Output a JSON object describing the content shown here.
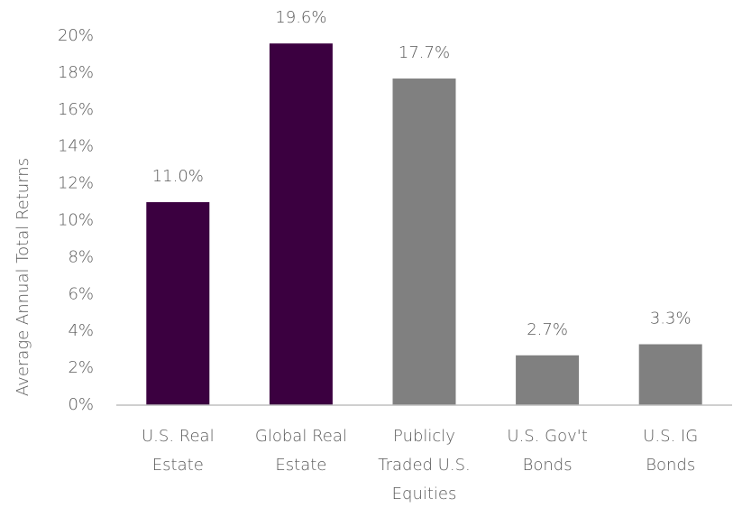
{
  "chart_data": {
    "type": "bar",
    "ylabel": "Average Annual Total Returns",
    "categories": [
      [
        "U.S. Real",
        "Estate"
      ],
      [
        "Global Real",
        "Estate"
      ],
      [
        "Publicly",
        "Traded U.S.",
        "Equities"
      ],
      [
        "U.S. Gov't",
        "Bonds"
      ],
      [
        "U.S. IG",
        "Bonds"
      ]
    ],
    "values": [
      11.0,
      19.6,
      17.7,
      2.7,
      3.3
    ],
    "value_labels": [
      "11.0%",
      "19.6%",
      "17.7%",
      "2.7%",
      "3.3%"
    ],
    "colors": [
      "#3b0040",
      "#3b0040",
      "#808080",
      "#808080",
      "#808080"
    ],
    "ylim": [
      0,
      20
    ],
    "yticks": [
      {
        "value": 0,
        "label": "0%"
      },
      {
        "value": 2,
        "label": "2%"
      },
      {
        "value": 4,
        "label": "4%"
      },
      {
        "value": 6,
        "label": "6%"
      },
      {
        "value": 8,
        "label": "8%"
      },
      {
        "value": 10,
        "label": "10%"
      },
      {
        "value": 12,
        "label": "12%"
      },
      {
        "value": 14,
        "label": "14%"
      },
      {
        "value": 16,
        "label": "16%"
      },
      {
        "value": 18,
        "label": "18%"
      },
      {
        "value": 20,
        "label": "20%"
      }
    ],
    "grid": false
  }
}
